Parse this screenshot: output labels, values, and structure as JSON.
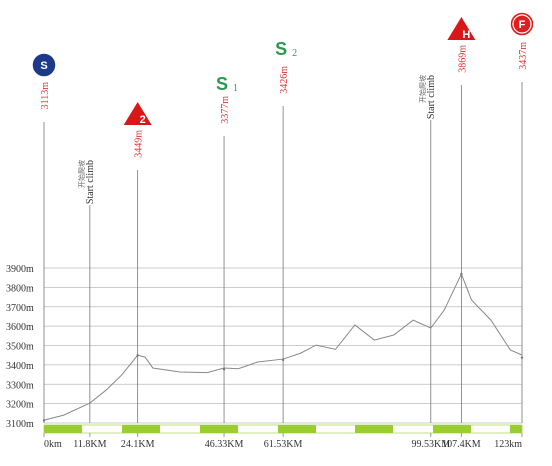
{
  "chart_data": {
    "type": "line",
    "color": "#888888",
    "x": [
      0,
      5,
      11.8,
      16,
      20,
      24.1,
      26,
      28,
      35,
      42,
      46.33,
      50,
      55,
      61.53,
      66,
      70,
      75,
      80,
      85,
      90,
      95,
      99.53,
      103,
      107.4,
      110,
      115,
      120,
      123
    ],
    "values": [
      3115,
      3140,
      3203,
      3270,
      3348,
      3450,
      3440,
      3384,
      3363,
      3360,
      3384,
      3380,
      3415,
      3430,
      3460,
      3502,
      3480,
      3606,
      3528,
      3554,
      3631,
      3590,
      3683,
      3869,
      3735,
      3631,
      3477,
      3451
    ],
    "xlim": [
      0,
      123
    ],
    "ylim": [
      3100,
      3900
    ],
    "yticks": [
      {
        "value": 3100,
        "label": "3100m"
      },
      {
        "value": 3200,
        "label": "3200m"
      },
      {
        "value": 3300,
        "label": "3300m"
      },
      {
        "value": 3400,
        "label": "3400m"
      },
      {
        "value": 3500,
        "label": "3500m"
      },
      {
        "value": 3600,
        "label": "3600m"
      },
      {
        "value": 3700,
        "label": "3700m"
      },
      {
        "value": 3800,
        "label": "3800m"
      },
      {
        "value": 3900,
        "label": "3900m"
      }
    ],
    "xticks": [
      {
        "value": 0,
        "label": "0km"
      },
      {
        "value": 11.8,
        "label": "11.8KM"
      },
      {
        "value": 24.1,
        "label": "24.1KM"
      },
      {
        "value": 46.33,
        "label": "46.33KM"
      },
      {
        "value": 61.53,
        "label": "61.53KM"
      },
      {
        "value": 99.53,
        "label": "99.53KM"
      },
      {
        "value": 107.4,
        "label": "107.4KM"
      },
      {
        "value": 123,
        "label": "123km"
      }
    ],
    "grid": true,
    "markers": [
      {
        "x": 0,
        "icon": "S",
        "elevation": {
          "value": 3113,
          "label": "3113m"
        }
      },
      {
        "x": 24.1,
        "icon": "2",
        "elevation": {
          "value": 3449,
          "label": "3449m"
        }
      },
      {
        "x": 46.33,
        "icon": "S",
        "sub": "1",
        "elevation": {
          "value": 3377,
          "label": "3377m"
        }
      },
      {
        "x": 61.53,
        "icon": "S",
        "sub": "2",
        "elevation": {
          "value": 3426,
          "label": "3426m"
        }
      },
      {
        "x": 107.4,
        "icon": "H",
        "elevation": {
          "value": 3869,
          "label": "3869m"
        }
      },
      {
        "x": 123,
        "icon": "F",
        "elevation": {
          "value": 3437,
          "label": "3437m"
        }
      }
    ],
    "climbs": [
      {
        "x": 11.8,
        "label": "Start climb",
        "label_cn": "开始爬坡"
      },
      {
        "x": 99.53,
        "label": "Start climb",
        "label_cn": "开始爬坡"
      }
    ]
  }
}
